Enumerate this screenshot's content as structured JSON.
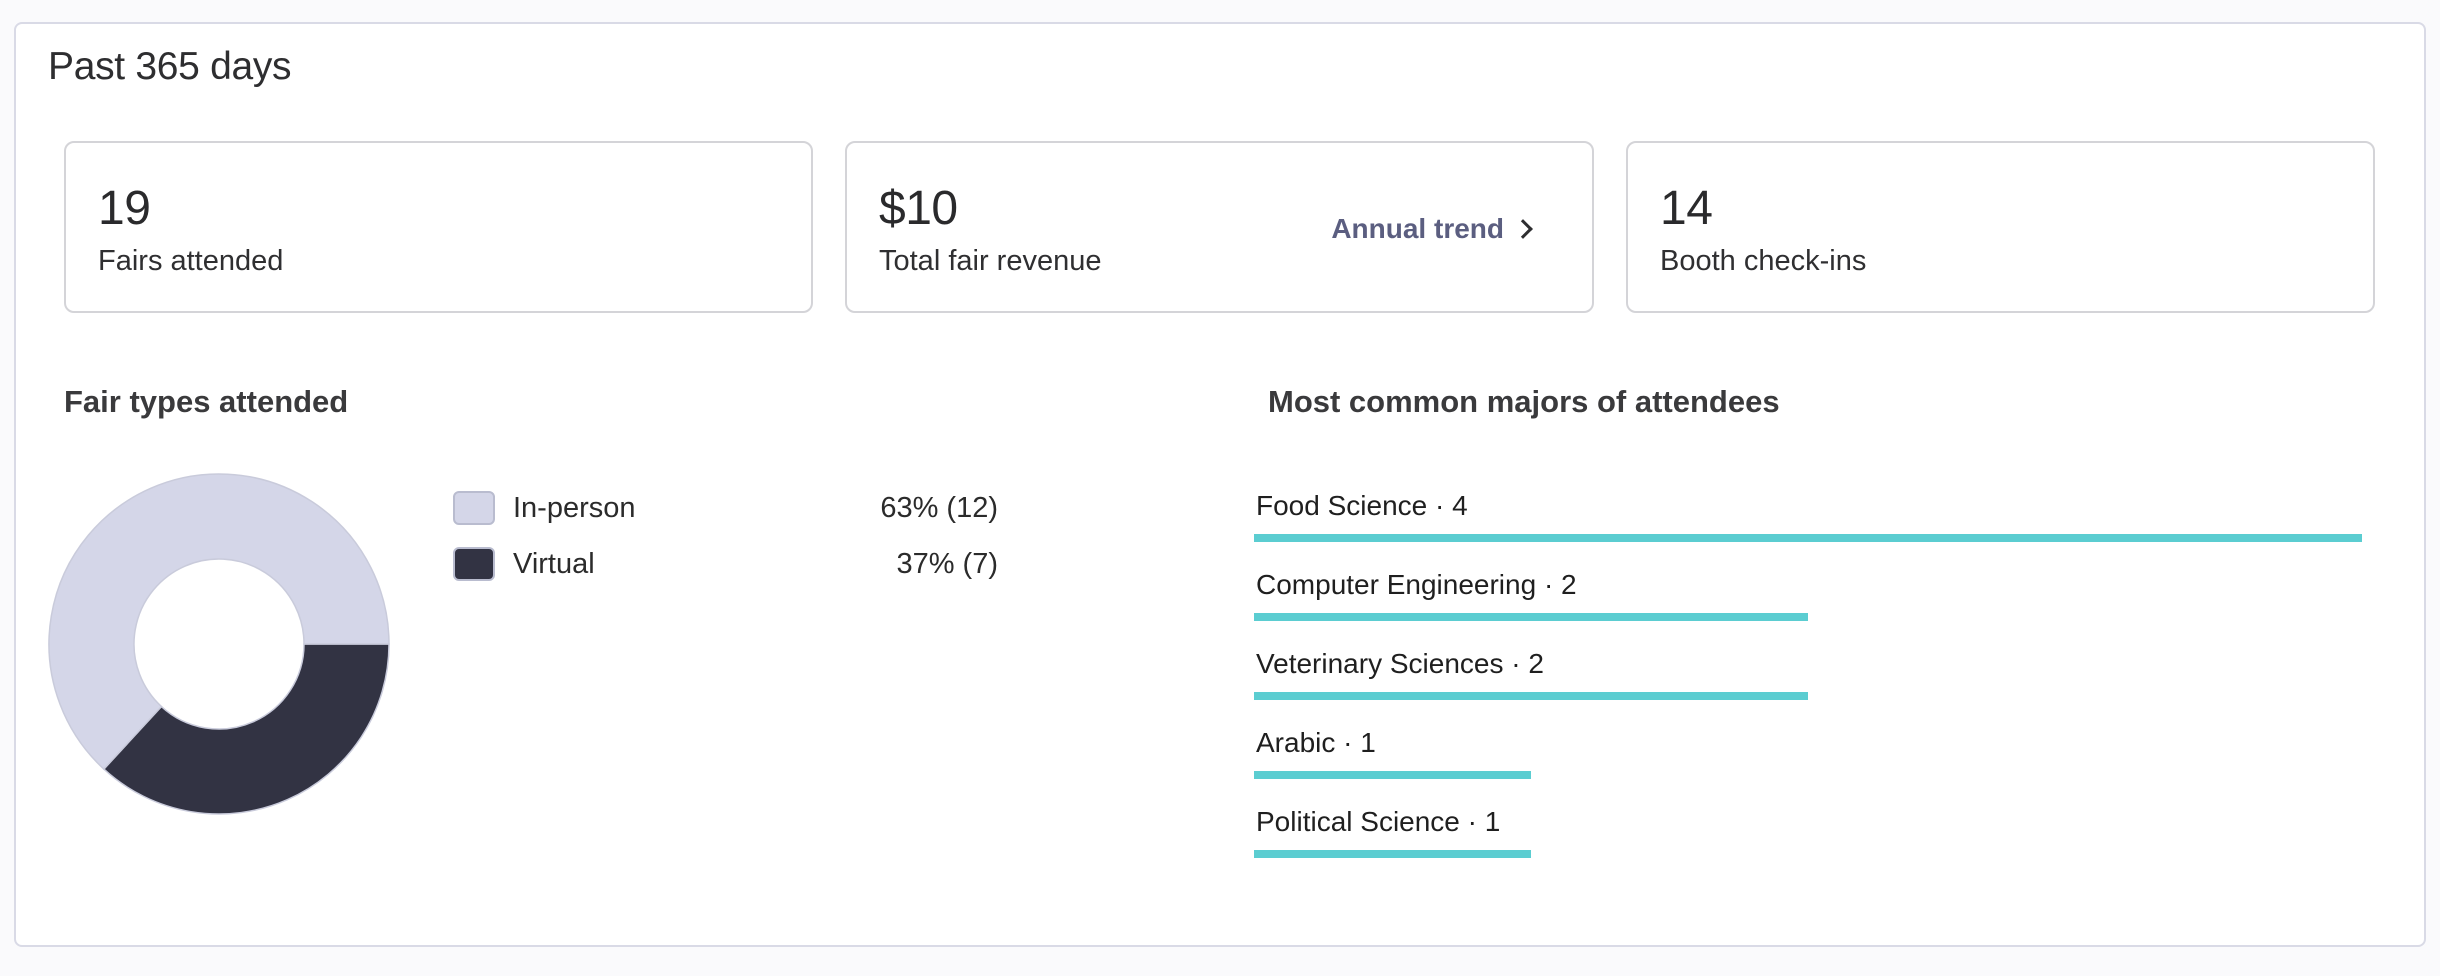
{
  "panel": {
    "title": "Past 365 days"
  },
  "stats": [
    {
      "value": "19",
      "label": "Fairs attended"
    },
    {
      "value": "$10",
      "label": "Total fair revenue",
      "link": "Annual trend"
    },
    {
      "value": "14",
      "label": "Booth check-ins"
    }
  ],
  "fair_types": {
    "title": "Fair types attended",
    "items": [
      {
        "label": "In-person",
        "value_text": "63% (12)",
        "count": 12,
        "color": "#d4d6e8"
      },
      {
        "label": "Virtual",
        "value_text": "37% (7)",
        "count": 7,
        "color": "#323343"
      }
    ]
  },
  "majors": {
    "title": "Most common majors of attendees",
    "bar_color": "#5bcdd1",
    "items": [
      {
        "label": "Food Science · 4",
        "count": 4
      },
      {
        "label": "Computer Engineering · 2",
        "count": 2
      },
      {
        "label": "Veterinary Sciences · 2",
        "count": 2
      },
      {
        "label": "Arabic · 1",
        "count": 1
      },
      {
        "label": "Political Science · 1",
        "count": 1
      }
    ]
  },
  "icons": {
    "annual_trend_link": "chevron-right-icon"
  }
}
